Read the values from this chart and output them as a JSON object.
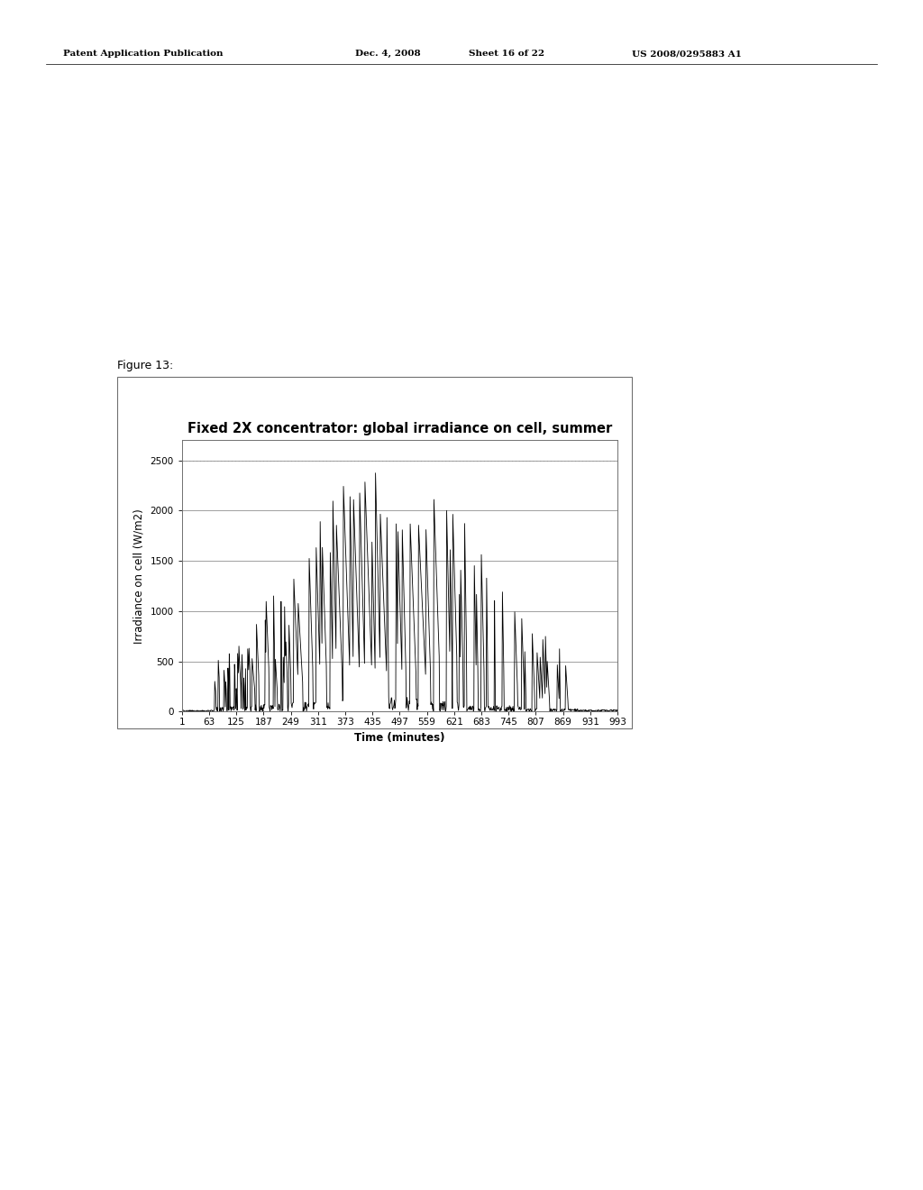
{
  "title": "Fixed 2X concentrator: global irradiance on cell, summer",
  "xlabel": "Time (minutes)",
  "ylabel": "Irradiance on cell (W/m2)",
  "xlim": [
    1,
    993
  ],
  "ylim": [
    0,
    2700
  ],
  "yticks": [
    0,
    500,
    1000,
    1500,
    2000,
    2500
  ],
  "xticks": [
    1,
    63,
    125,
    187,
    249,
    311,
    373,
    435,
    497,
    559,
    621,
    683,
    745,
    807,
    869,
    931,
    993
  ],
  "background_color": "#ffffff",
  "line_color": "#000000",
  "grid_color": "#808080",
  "title_fontsize": 10.5,
  "axis_label_fontsize": 8.5,
  "tick_fontsize": 7.5,
  "figure_label": "Figure 13:",
  "header_left": "Patent Application Publication",
  "header_mid1": "Dec. 4, 2008",
  "header_mid2": "Sheet 16 of 22",
  "header_right": "US 2008/0295883 A1"
}
